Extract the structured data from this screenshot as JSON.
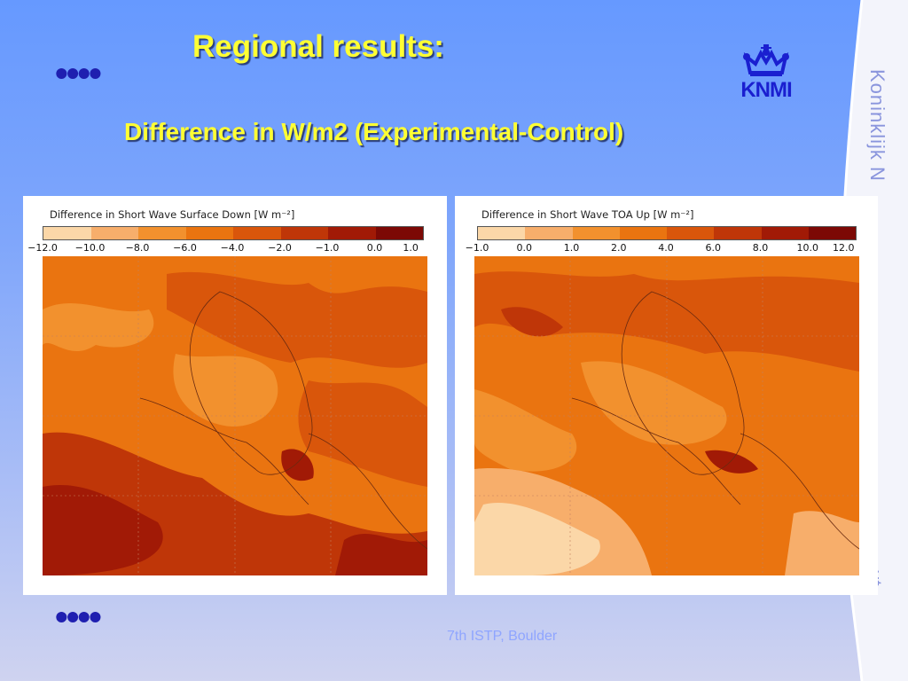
{
  "slide": {
    "title": "Regional results:",
    "subtitle": "Difference in W/m2 (Experimental-Control)",
    "bullet_top": "••••",
    "bullet_bottom": "••••",
    "footer": "7th ISTP, Boulder",
    "side_text_top": "Koninklijk N",
    "side_text_bottom": "..ut"
  },
  "logo": {
    "text": "KNMI",
    "icon": "crown-icon",
    "color": "#1a1fd0"
  },
  "panels": [
    {
      "title": "Difference in Short Wave Surface Down [W m⁻²]",
      "ticks": [
        "−12.0",
        "−10.0",
        "−8.0",
        "−6.0",
        "−4.0",
        "−2.0",
        "−1.0",
        "0.0",
        "1.0"
      ],
      "colors": [
        "#fbd7a8",
        "#f7ae6b",
        "#f2912e",
        "#ea7410",
        "#d9560b",
        "#bf3608",
        "#a11a06",
        "#7c0905"
      ]
    },
    {
      "title": "Difference in  Short Wave TOA Up [W m⁻²]",
      "ticks": [
        "−1.0",
        "0.0",
        "1.0",
        "2.0",
        "4.0",
        "6.0",
        "8.0",
        "10.0",
        "12.0"
      ],
      "colors": [
        "#fbd7a8",
        "#f7ae6b",
        "#f2912e",
        "#ea7410",
        "#d9560b",
        "#bf3608",
        "#a11a06",
        "#7c0905"
      ]
    }
  ]
}
